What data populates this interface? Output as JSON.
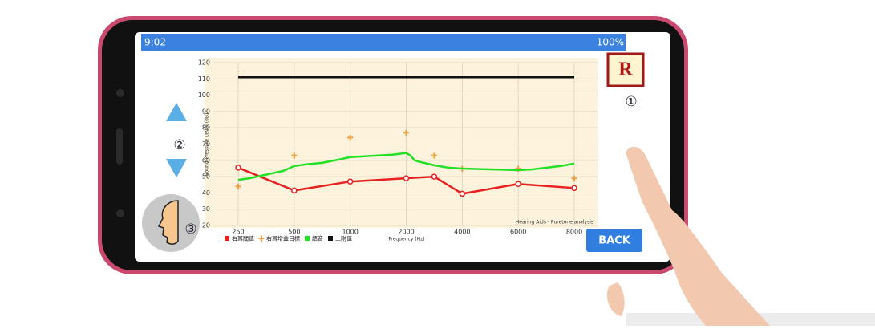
{
  "status_bar": {
    "time": "9:02",
    "battery": "100%"
  },
  "badge": "R",
  "markers": [
    "①",
    "②",
    "③"
  ],
  "button": "BACK",
  "chart": {
    "type": "line",
    "y_label": "Sound Pressure Level (dB)",
    "x_label": "Frequency (Hz)",
    "annotation": "Hearing Aids - Puretone analysis",
    "ylim": [
      20,
      120
    ],
    "yticks": [
      20,
      30,
      40,
      50,
      60,
      70,
      80,
      90,
      100,
      110,
      120
    ],
    "xticks": [
      250,
      500,
      1000,
      2000,
      4000,
      6000,
      8000
    ],
    "grid": true,
    "series": [
      {
        "name": "右耳閾值",
        "color": "#e82020",
        "marker": "circle",
        "x": [
          250,
          500,
          1000,
          2000,
          3000,
          4000,
          6000,
          8000
        ],
        "values": [
          55.5,
          41.5,
          47,
          49,
          50,
          39.5,
          45.5,
          43
        ]
      },
      {
        "name": "右耳增益目標",
        "color": "#f0a040",
        "marker": "cross",
        "x": [
          250,
          500,
          1000,
          2000,
          3000,
          4000,
          6000,
          8000
        ],
        "values": [
          44,
          63,
          74,
          77,
          63,
          55,
          55,
          49
        ]
      },
      {
        "name": "語音",
        "color": "#22e022",
        "marker": "none",
        "x": [
          250,
          300,
          400,
          450,
          500,
          600,
          750,
          900,
          1000,
          1250,
          1500,
          1750,
          2000,
          2150,
          2300,
          2500,
          3000,
          3500,
          4000,
          5000,
          6000,
          6500,
          7000,
          7500,
          8000
        ],
        "values": [
          48,
          49,
          52,
          53.5,
          56.5,
          57.5,
          58.5,
          60.5,
          62,
          62.5,
          63,
          63.5,
          64.5,
          63,
          60,
          59,
          57,
          55.5,
          55,
          54.5,
          54,
          54.5,
          55.5,
          56.5,
          58
        ]
      },
      {
        "name": "上附值",
        "color": "#111111",
        "marker": "none",
        "x": [
          250,
          8000
        ],
        "values": [
          111,
          111
        ]
      }
    ]
  }
}
